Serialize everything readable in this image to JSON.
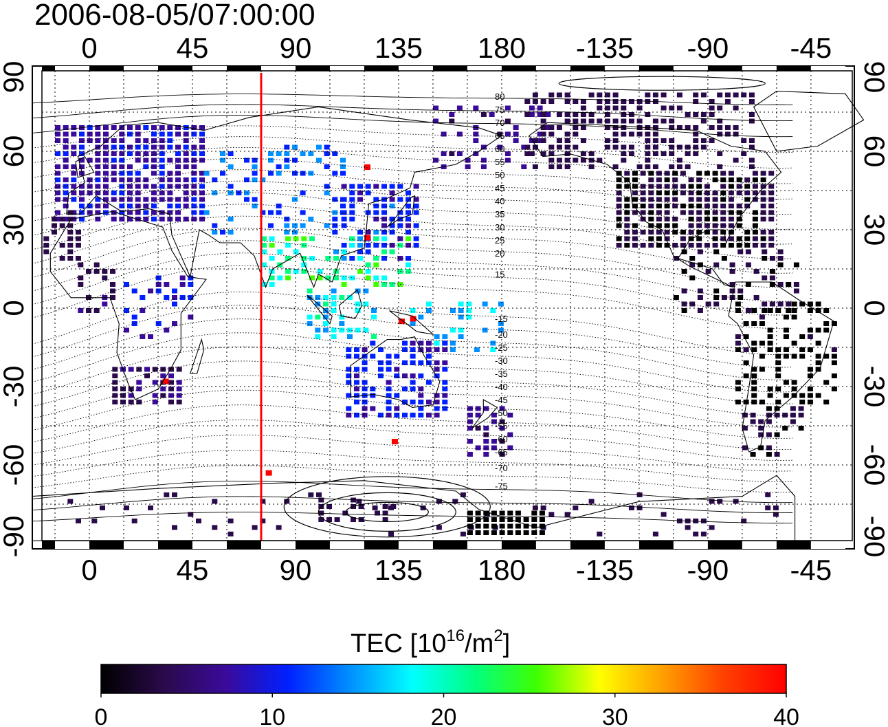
{
  "title": "2006-08-05/07:00:00",
  "map": {
    "lon_ticks_top": [
      "0",
      "45",
      "90",
      "135",
      "180",
      "-135",
      "-90",
      "-45"
    ],
    "lon_ticks_bottom": [
      "0",
      "45",
      "90",
      "135",
      "180",
      "-135",
      "-90",
      "-45"
    ],
    "lat_ticks_left": [
      "90",
      "60",
      "30",
      "0",
      "-30",
      "-60",
      "-90"
    ],
    "lat_ticks_right": [
      "90",
      "60",
      "30",
      "0",
      "-30",
      "-60",
      "-90"
    ],
    "lon_range": [
      -25,
      308
    ],
    "lat_range": [
      -90,
      90
    ],
    "grid": "dotted, every 15 degrees",
    "red_meridian_lon": 75,
    "contour_labels_north": [
      "80",
      "75",
      "70",
      "65",
      "60",
      "55",
      "50",
      "45",
      "40",
      "35",
      "30",
      "25",
      "20",
      "15"
    ],
    "contour_labels_south": [
      "-15",
      "-20",
      "-25",
      "-30",
      "-35",
      "-40",
      "-45",
      "-50",
      "-55",
      "-60",
      "-65",
      "-70",
      "-75"
    ],
    "accent_color": "#ff0000"
  },
  "colorbar": {
    "title_prefix": "TEC  [10",
    "title_exp1": "16",
    "title_mid": "/m",
    "title_exp2": "2",
    "title_suffix": "]",
    "ticks": [
      "0",
      "10",
      "20",
      "30",
      "40"
    ],
    "range": [
      0,
      40
    ],
    "colormap": [
      "#000000",
      "#2a0a4a",
      "#3a0a9a",
      "#0020ff",
      "#0090ff",
      "#00ffff",
      "#00ff80",
      "#40ff00",
      "#ffff00",
      "#ffa000",
      "#ff4000",
      "#ff0000"
    ]
  }
}
